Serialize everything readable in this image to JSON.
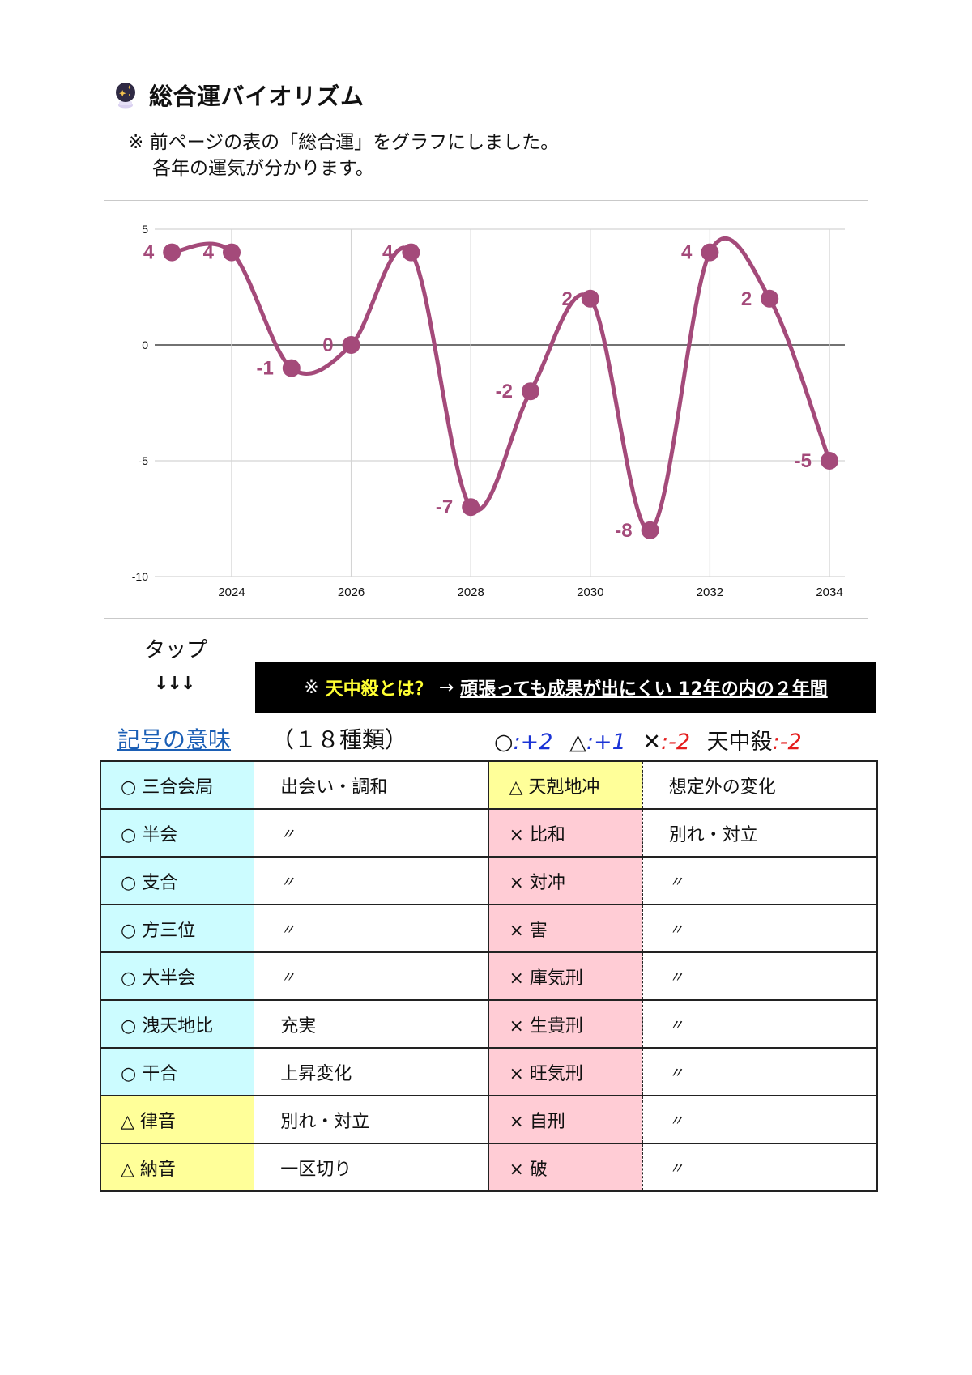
{
  "header": {
    "icon": "crystal-ball-icon",
    "title": "総合運バイオリズム",
    "note_line1": "※ 前ページの表の「総合運」をグラフにしました。",
    "note_line2": "各年の運気が分かります。"
  },
  "chart_data": {
    "type": "line",
    "title": "",
    "xlabel": "",
    "ylabel": "",
    "x": [
      2023,
      2024,
      2025,
      2026,
      2027,
      2028,
      2029,
      2030,
      2031,
      2032,
      2033,
      2034
    ],
    "values": [
      4,
      4,
      -1,
      0,
      4,
      -7,
      -2,
      2,
      -8,
      4,
      2,
      -5
    ],
    "series": [
      {
        "name": "総合運",
        "values": [
          4,
          4,
          -1,
          0,
          4,
          -7,
          -2,
          2,
          -8,
          4,
          2,
          -5
        ],
        "color": "#a44a7a"
      }
    ],
    "x_ticks": [
      "2024",
      "2026",
      "2028",
      "2030",
      "2032",
      "2034"
    ],
    "y_ticks": [
      "5",
      "0",
      "-5",
      "-10"
    ],
    "ylim": [
      -10,
      5
    ],
    "xlim": [
      2022.7,
      2034.3
    ],
    "smooth": true,
    "data_labels": true,
    "grid": true,
    "legend": "none"
  },
  "tap": {
    "label": "タップ",
    "arrows": "↓↓↓"
  },
  "banner": {
    "prefix": "※",
    "question": "天中殺とは？",
    "arrow": "→",
    "link_text": "頑張っても成果が出にくい 12年の内の２年間"
  },
  "legend": {
    "meaning_link": "記号の意味",
    "count": "（１８種類）",
    "scores": [
      {
        "symbol": "○",
        "sep": ":",
        "value": "+2",
        "color": "#1a33d6"
      },
      {
        "symbol": "△",
        "sep": ":",
        "value": "+1",
        "color": "#1a33d6"
      },
      {
        "symbol": "✕",
        "sep": ":",
        "value": "-2",
        "color": "#e41d1d"
      },
      {
        "symbol": "天中殺",
        "sep": ":",
        "value": "-2",
        "color": "#e41d1d"
      }
    ]
  },
  "colors": {
    "good": "#ccfcff",
    "neutral": "#ffff99",
    "bad": "#ffccd5",
    "line": "#a44a7a",
    "link": "#1b5fb5"
  },
  "table": {
    "rows": [
      {
        "left_key": "○ 三合会局",
        "left_meaning": "出会い・調和",
        "right_key": "△ 天剋地冲",
        "right_meaning": "想定外の変化"
      },
      {
        "left_key": "○ 半会",
        "left_meaning": "〃",
        "right_key": "× 比和",
        "right_meaning": "別れ・対立"
      },
      {
        "left_key": "○ 支合",
        "left_meaning": "〃",
        "right_key": "× 対冲",
        "right_meaning": "〃"
      },
      {
        "left_key": "○ 方三位",
        "left_meaning": "〃",
        "right_key": "× 害",
        "right_meaning": "〃"
      },
      {
        "left_key": "○ 大半会",
        "left_meaning": "〃",
        "right_key": "× 庫気刑",
        "right_meaning": "〃"
      },
      {
        "left_key": "○ 洩天地比",
        "left_meaning": "充実",
        "right_key": "× 生貴刑",
        "right_meaning": "〃"
      },
      {
        "left_key": "○ 干合",
        "left_meaning": "上昇変化",
        "right_key": "× 旺気刑",
        "right_meaning": "〃"
      },
      {
        "left_key": "△ 律音",
        "left_meaning": "別れ・対立",
        "right_key": "× 自刑",
        "right_meaning": "〃"
      },
      {
        "left_key": "△ 納音",
        "left_meaning": "一区切り",
        "right_key": "× 破",
        "right_meaning": "〃"
      }
    ]
  }
}
